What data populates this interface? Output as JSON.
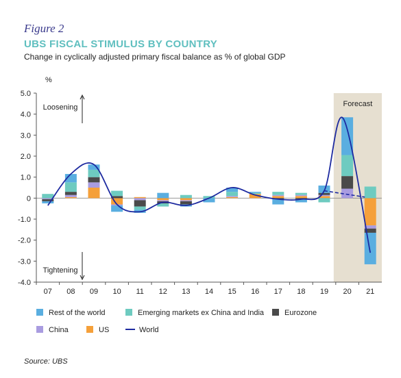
{
  "figure_label": "Figure 2",
  "title": "UBS FISCAL STIMULUS BY COUNTRY",
  "subtitle": "Change in cyclically adjusted primary fiscal balance as % of global GDP",
  "source": "Source: UBS",
  "colors": {
    "rest_of_world": "#5aaee0",
    "emerging": "#6ecbc0",
    "eurozone": "#4a4a4a",
    "china": "#a99ce0",
    "us": "#f5a03a",
    "world": "#1d2aa0",
    "forecast_bg": "#e6dfd0"
  },
  "chart_data": {
    "type": "bar",
    "stacked": true,
    "ylabel": "%",
    "ylim": [
      -4.0,
      5.0
    ],
    "yticks": [
      "5.0",
      "4.0",
      "3.0",
      "2.0",
      "1.0",
      "0",
      "-1.0",
      "-2.0",
      "-3.0",
      "-4.0"
    ],
    "categories": [
      "07",
      "08",
      "09",
      "10",
      "11",
      "12",
      "13",
      "14",
      "15",
      "16",
      "17",
      "18",
      "19",
      "20",
      "21"
    ],
    "series": [
      {
        "name": "US",
        "key": "us",
        "values": [
          0.0,
          0.05,
          0.5,
          -0.3,
          0.05,
          -0.1,
          -0.1,
          0.0,
          0.05,
          0.2,
          0.1,
          0.1,
          0.1,
          0.0,
          -1.3
        ]
      },
      {
        "name": "China",
        "key": "china",
        "values": [
          -0.05,
          0.1,
          0.25,
          -0.05,
          -0.1,
          -0.05,
          -0.05,
          0.0,
          0.05,
          0.0,
          0.05,
          0.05,
          0.05,
          0.45,
          -0.15
        ]
      },
      {
        "name": "Eurozone",
        "key": "eurozone",
        "values": [
          -0.1,
          0.15,
          0.25,
          0.1,
          -0.3,
          -0.1,
          -0.15,
          0.0,
          0.0,
          0.0,
          -0.05,
          -0.05,
          0.1,
          0.6,
          -0.2
        ]
      },
      {
        "name": "Emerging markets ex China and India",
        "key": "emerging",
        "values": [
          0.2,
          0.45,
          0.35,
          0.25,
          -0.15,
          -0.15,
          0.15,
          0.1,
          0.2,
          0.05,
          0.15,
          0.1,
          -0.2,
          1.0,
          0.55
        ]
      },
      {
        "name": "Rest of the world",
        "key": "rest_of_world",
        "values": [
          -0.1,
          0.4,
          0.25,
          -0.3,
          -0.15,
          0.25,
          -0.1,
          -0.2,
          0.2,
          0.05,
          -0.25,
          -0.15,
          0.35,
          1.8,
          -1.5
        ]
      }
    ],
    "line": {
      "name": "World",
      "key": "world",
      "values": [
        -0.35,
        1.15,
        1.6,
        -0.3,
        -0.65,
        -0.2,
        -0.35,
        0.0,
        0.5,
        0.15,
        -0.05,
        -0.05,
        0.35,
        3.8,
        -2.6
      ],
      "forecast_from": "19"
    },
    "forecast_label": "Forecast",
    "forecast_categories": [
      "20",
      "21"
    ],
    "annotations": {
      "loosening": "Loosening",
      "tightening": "Tightening"
    },
    "legend": [
      {
        "label": "Rest of the world",
        "key": "rest_of_world",
        "kind": "box"
      },
      {
        "label": "Emerging markets ex China and India",
        "key": "emerging",
        "kind": "box"
      },
      {
        "label": "Eurozone",
        "key": "eurozone",
        "kind": "box"
      },
      {
        "label": "China",
        "key": "china",
        "kind": "box"
      },
      {
        "label": "US",
        "key": "us",
        "kind": "box"
      },
      {
        "label": "World",
        "key": "world",
        "kind": "line"
      }
    ],
    "legend_position": "bottom"
  }
}
